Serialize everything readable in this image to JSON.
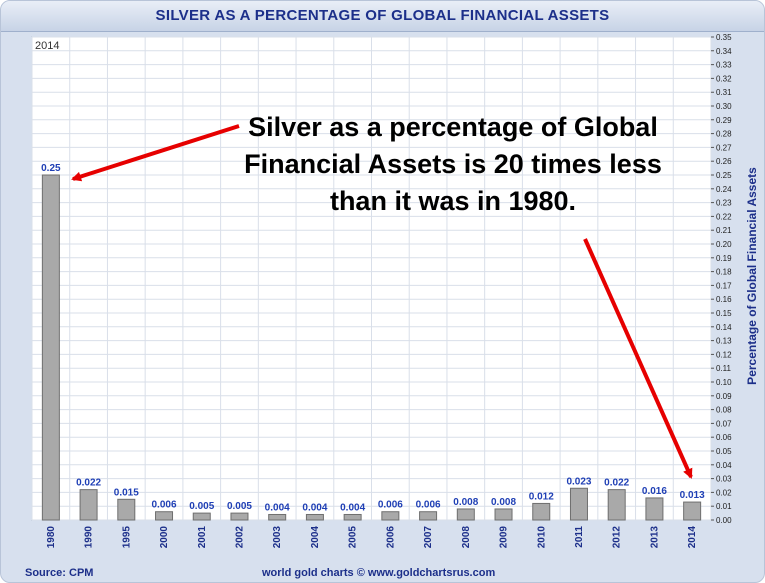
{
  "title": "SILVER AS A PERCENTAGE OF GLOBAL FINANCIAL ASSETS",
  "source": "Source: CPM",
  "credit": "world gold charts © www.goldchartsrus.com",
  "year_tag": "2014",
  "annotation_lines": [
    "Silver as a percentage of Global",
    "Financial Assets is 20 times less",
    "than it was in 1980."
  ],
  "colors": {
    "title": "#1c2f8a",
    "bar": "#a9a9a9",
    "value_label": "#1f3fb5",
    "arrow": "#e60000",
    "grid": "#d9dfe9"
  },
  "chart_data": {
    "type": "bar",
    "categories": [
      "1980",
      "1990",
      "1995",
      "2000",
      "2001",
      "2002",
      "2003",
      "2004",
      "2005",
      "2006",
      "2007",
      "2008",
      "2009",
      "2010",
      "2011",
      "2012",
      "2013",
      "2014"
    ],
    "values": [
      0.25,
      0.022,
      0.015,
      0.006,
      0.005,
      0.005,
      0.004,
      0.004,
      0.004,
      0.006,
      0.006,
      0.008,
      0.008,
      0.012,
      0.023,
      0.022,
      0.016,
      0.013
    ],
    "value_labels": [
      "0.25",
      "0.022",
      "0.015",
      "0.006",
      "0.005",
      "0.005",
      "0.004",
      "0.004",
      "0.004",
      "0.006",
      "0.006",
      "0.008",
      "0.008",
      "0.012",
      "0.023",
      "0.022",
      "0.016",
      "0.013"
    ],
    "ylabel": "Percentage of Global Financial Assets",
    "y_axis_side": "right",
    "ylim": [
      0,
      0.35
    ],
    "ytick_step": 0.01,
    "yticks": [
      "0.00",
      "0.01",
      "0.02",
      "0.03",
      "0.04",
      "0.05",
      "0.06",
      "0.07",
      "0.08",
      "0.09",
      "0.10",
      "0.11",
      "0.12",
      "0.13",
      "0.14",
      "0.15",
      "0.16",
      "0.17",
      "0.18",
      "0.19",
      "0.20",
      "0.21",
      "0.22",
      "0.23",
      "0.24",
      "0.25",
      "0.26",
      "0.27",
      "0.28",
      "0.29",
      "0.30",
      "0.31",
      "0.32",
      "0.33",
      "0.34",
      "0.35"
    ],
    "grid": true
  }
}
